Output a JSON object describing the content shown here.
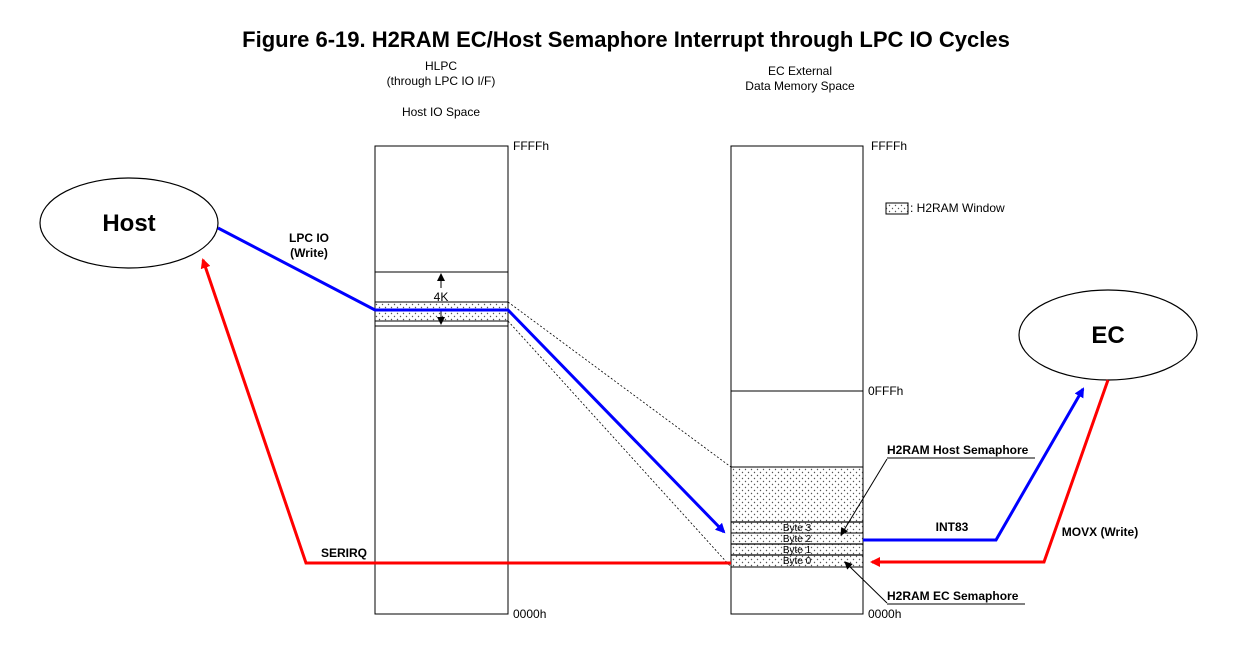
{
  "title": "Figure 6-19. H2RAM EC/Host Semaphore Interrupt through LPC IO Cycles",
  "hlpc": {
    "heading_line1": "HLPC",
    "heading_line2": "(through LPC IO I/F)",
    "subheading": "Host IO Space",
    "top_addr": "FFFFh",
    "bottom_addr": "0000h",
    "window_size": "4K"
  },
  "ec_mem": {
    "heading_line1": "EC External",
    "heading_line2": "Data Memory Space",
    "top_addr": "FFFFh",
    "mid_addr": "0FFFh",
    "bottom_addr": "0000h",
    "bytes": [
      "Byte 3",
      "Byte 2",
      "Byte 1",
      "Byte 0"
    ]
  },
  "legend": {
    "label": ": H2RAM Window"
  },
  "nodes": {
    "host": "Host",
    "ec": "EC"
  },
  "annotations": {
    "lpc_io_line1": "LPC IO",
    "lpc_io_line2": "(Write)",
    "serirq": "SERIRQ",
    "int83": "INT83",
    "movx": "MOVX (Write)",
    "host_semaphore": "H2RAM Host Semaphore",
    "ec_semaphore": "H2RAM EC Semaphore"
  },
  "colors": {
    "host_path": "#0000ff",
    "ec_path": "#ff0000"
  }
}
